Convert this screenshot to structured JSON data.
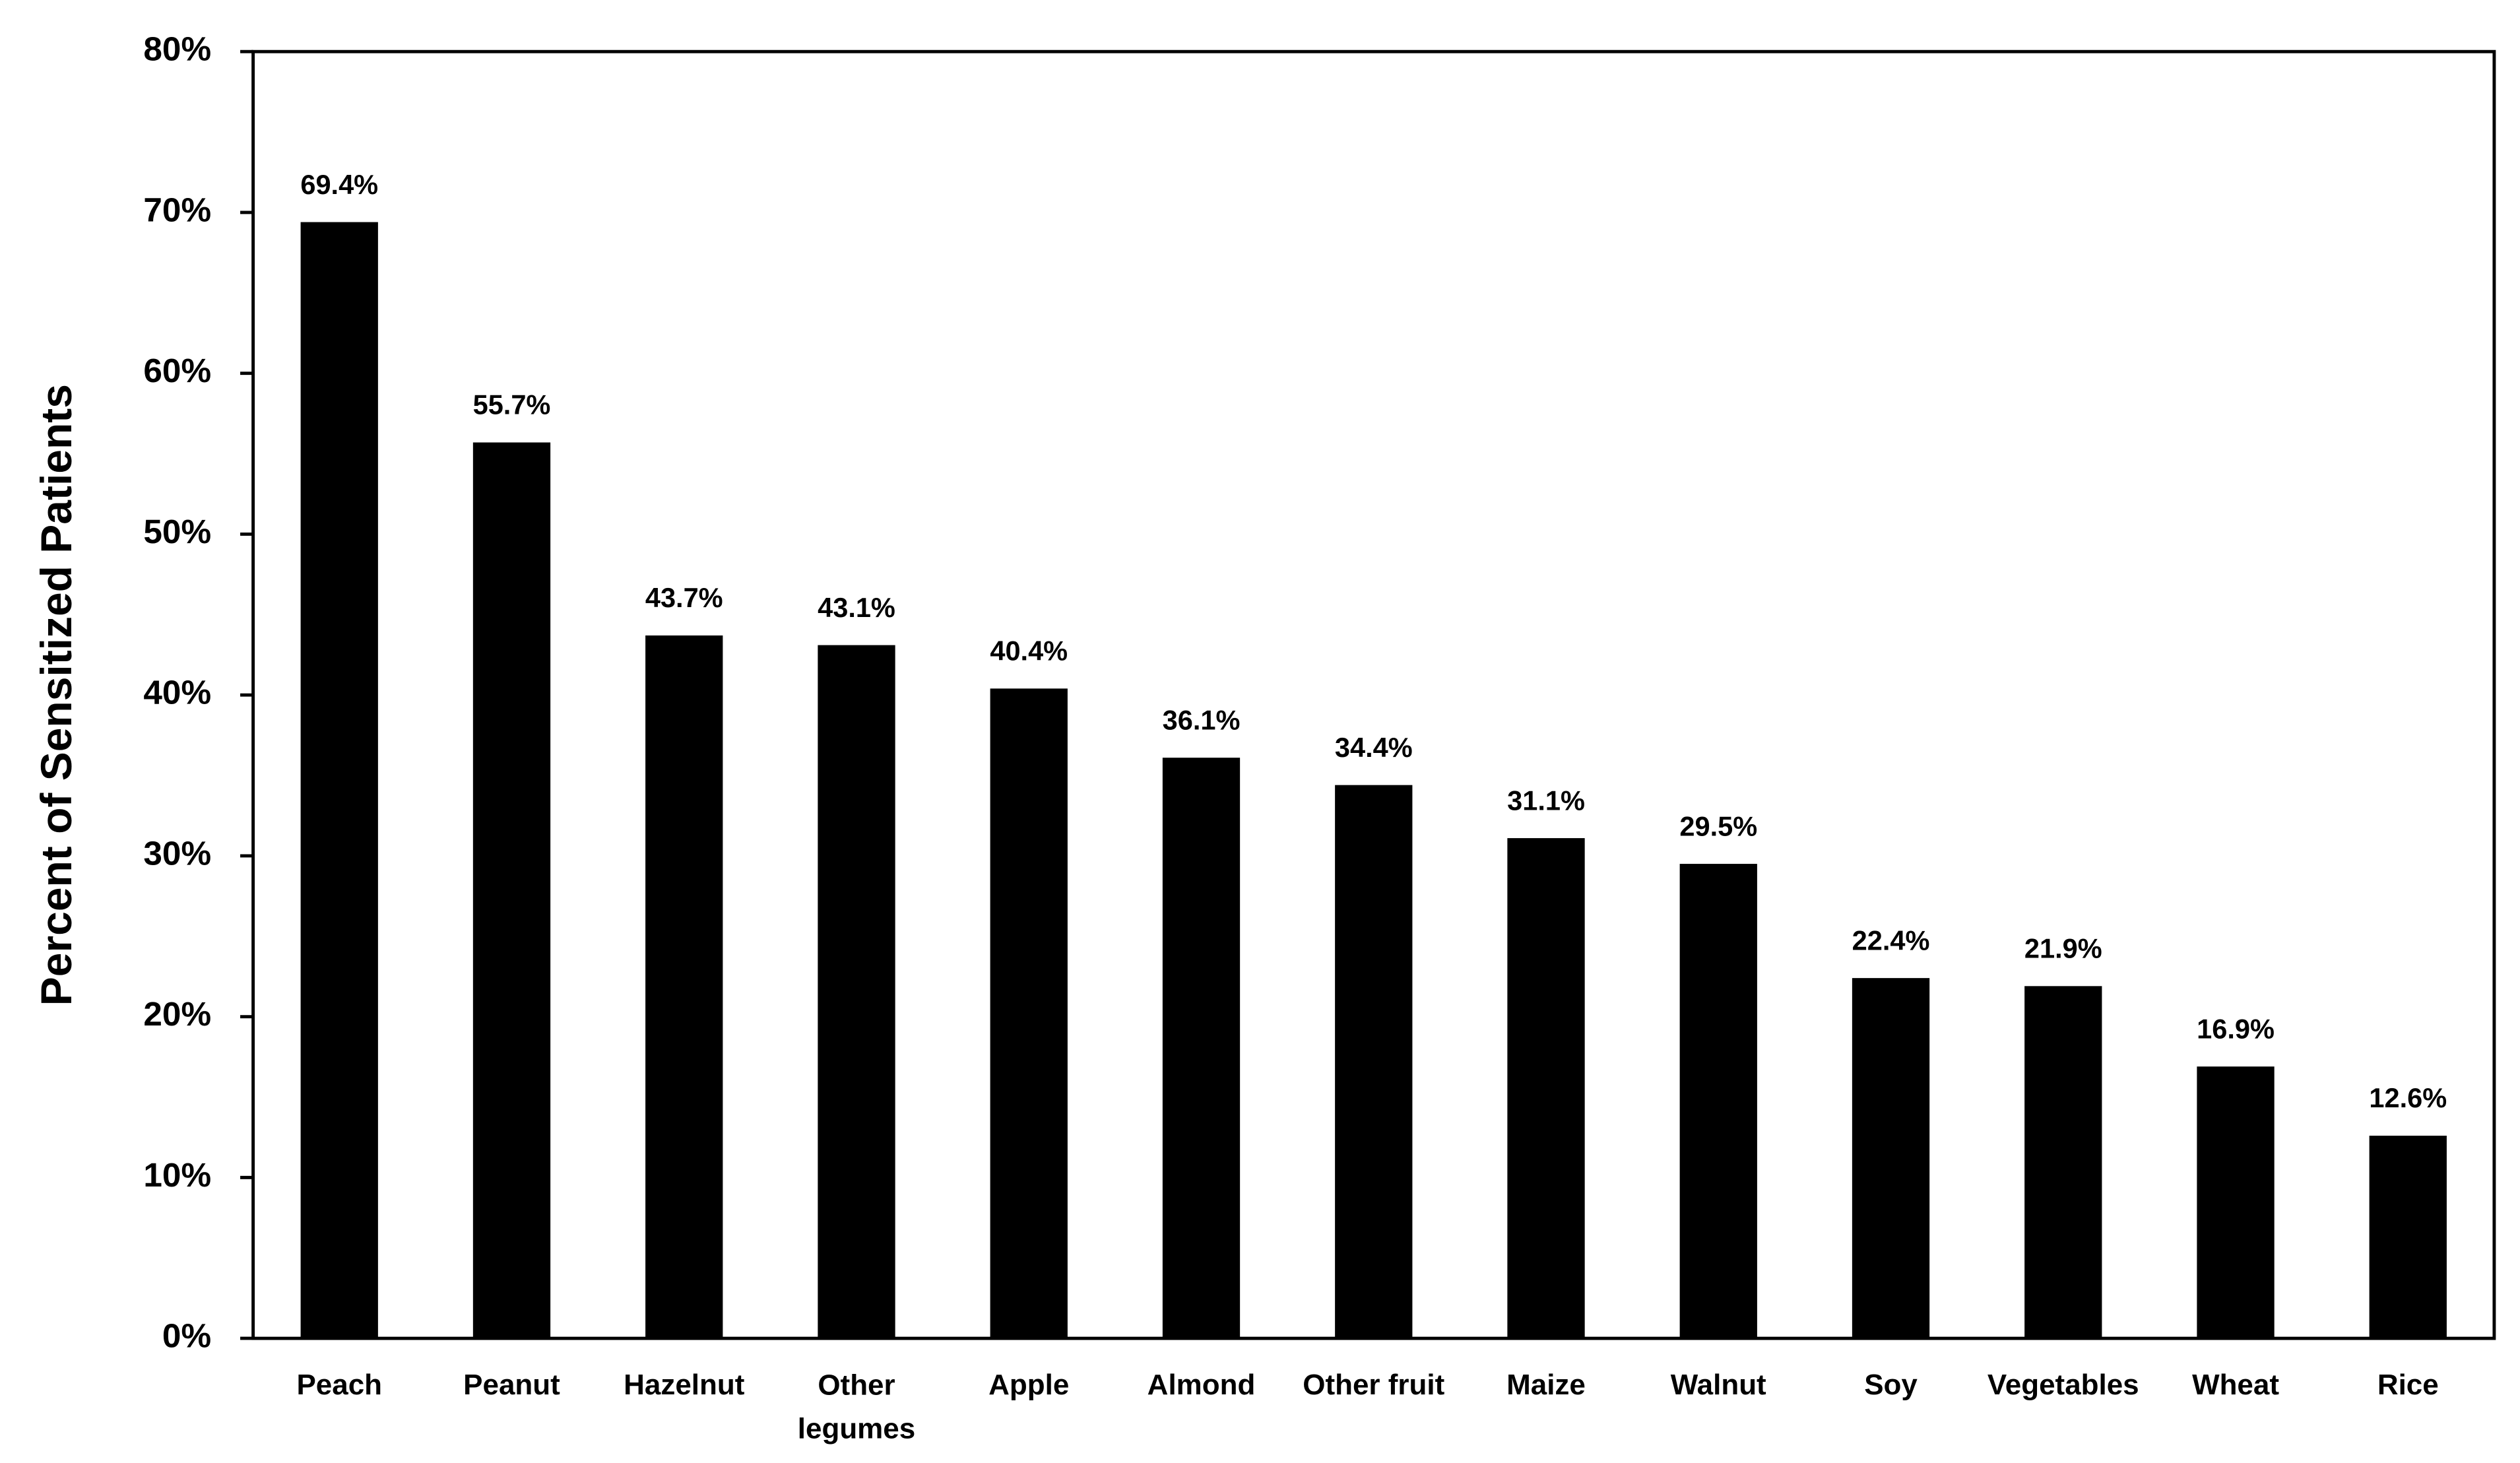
{
  "chart_data": {
    "type": "bar",
    "y_label": "Percent of Sensitized Patients",
    "categories": [
      "Peach",
      "Peanut",
      "Hazelnut",
      "Other legumes",
      "Apple",
      "Almond",
      "Other fruit",
      "Maize",
      "Walnut",
      "Soy",
      "Vegetables",
      "Wheat",
      "Rice"
    ],
    "values": [
      69.4,
      55.7,
      43.7,
      43.1,
      40.4,
      36.1,
      34.4,
      31.1,
      29.5,
      22.4,
      21.9,
      16.9,
      12.6
    ],
    "value_labels": [
      "69.4%",
      "55.7%",
      "43.7%",
      "43.1%",
      "40.4%",
      "36.1%",
      "34.4%",
      "31.1%",
      "29.5%",
      "22.4%",
      "21.9%",
      "16.9%",
      "12.6%"
    ],
    "color": "#000000",
    "ylim": [
      0,
      80
    ],
    "yticks": [
      {
        "value": 0,
        "label": "0%"
      },
      {
        "value": 10,
        "label": "10%"
      },
      {
        "value": 20,
        "label": "20%"
      },
      {
        "value": 30,
        "label": "30%"
      },
      {
        "value": 40,
        "label": "40%"
      },
      {
        "value": 50,
        "label": "50%"
      },
      {
        "value": 60,
        "label": "60%"
      },
      {
        "value": 70,
        "label": "70%"
      },
      {
        "value": 80,
        "label": "80%"
      }
    ],
    "grid": false
  }
}
